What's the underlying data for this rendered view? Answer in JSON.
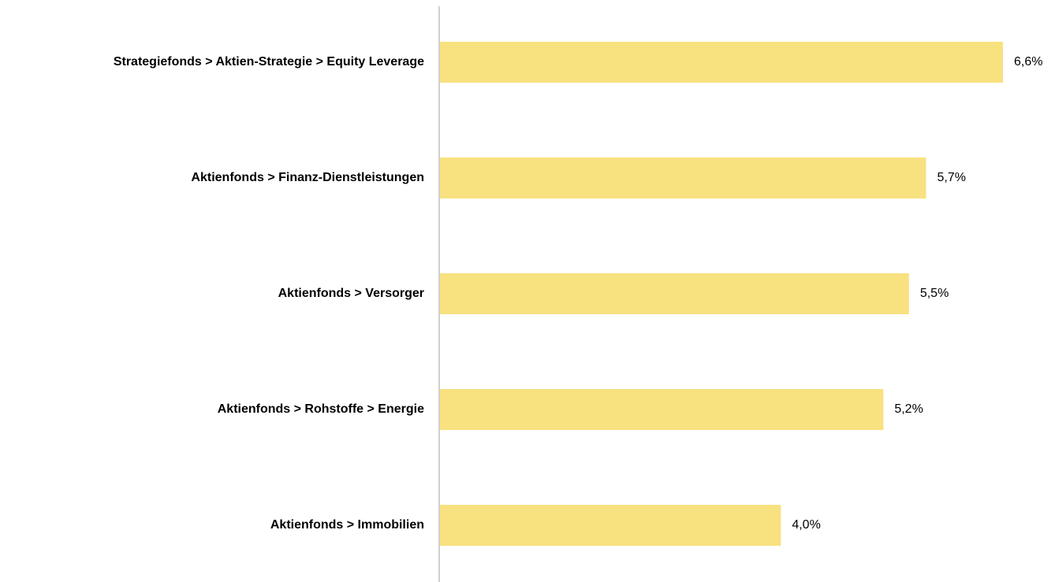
{
  "chart_data": {
    "type": "bar",
    "orientation": "horizontal",
    "categories": [
      "Strategiefonds > Aktien-Strategie > Equity Leverage",
      "Aktienfonds > Finanz-Dienstleistungen",
      "Aktienfonds > Versorger",
      "Aktienfonds > Rohstoffe > Energie",
      "Aktienfonds > Immobilien"
    ],
    "values": [
      6.6,
      5.7,
      5.5,
      5.2,
      4.0
    ],
    "value_labels": [
      "6,6%",
      "5,7%",
      "5,5%",
      "5,2%",
      "4,0%"
    ],
    "color": "#f8e17f",
    "xlim": [
      0,
      7.2
    ]
  }
}
